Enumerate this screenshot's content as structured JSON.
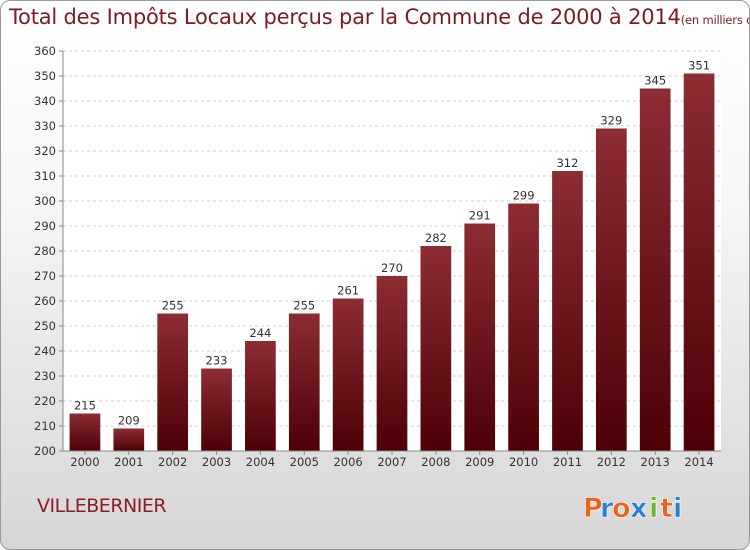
{
  "chart_data": {
    "type": "bar",
    "title": "Total des Impôts Locaux perçus par la Commune de 2000 à 2014",
    "unit_note": "(en milliers d'€)",
    "categories": [
      "2000",
      "2001",
      "2002",
      "2003",
      "2004",
      "2005",
      "2006",
      "2007",
      "2008",
      "2009",
      "2010",
      "2011",
      "2012",
      "2013",
      "2014"
    ],
    "values": [
      215,
      209,
      255,
      233,
      244,
      255,
      261,
      270,
      282,
      291,
      299,
      312,
      329,
      345,
      351
    ],
    "ylim": [
      200,
      360
    ],
    "yticks": [
      200,
      210,
      220,
      230,
      240,
      250,
      260,
      270,
      280,
      290,
      300,
      310,
      320,
      330,
      340,
      350,
      360
    ],
    "grid": true,
    "bar_color": "#7a1a20"
  },
  "commune": "VILLEBERNIER",
  "logo": {
    "letters": [
      "P",
      "r",
      "o",
      "x",
      "i",
      "t",
      "i"
    ],
    "colors": [
      "#e8641e",
      "#2a7fc9",
      "#e8641e",
      "#2a7fc9",
      "#6cb52d",
      "#e8641e",
      "#2a7fc9"
    ]
  }
}
